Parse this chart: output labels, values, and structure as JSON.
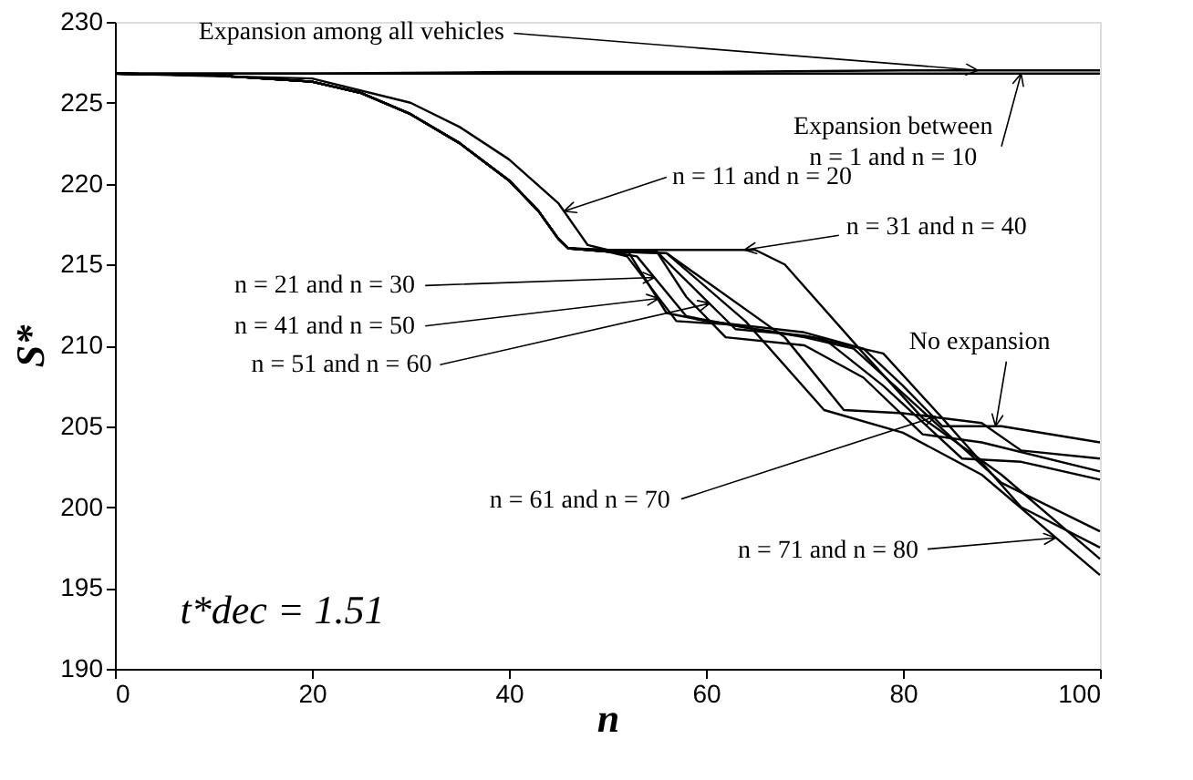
{
  "chart_data": {
    "type": "line",
    "xlabel": "n",
    "ylabel": "S*",
    "xlim": [
      0,
      100
    ],
    "xticks": [
      0,
      20,
      40,
      60,
      80,
      100
    ],
    "ylim": [
      190,
      230
    ],
    "yticks": [
      190,
      195,
      200,
      205,
      210,
      215,
      220,
      225,
      230
    ],
    "grid": false,
    "line_style": "solid",
    "series": [
      {
        "color": "#000000",
        "x": [
          0,
          20,
          40,
          60,
          80,
          100
        ],
        "values": [
          226.8,
          226.8,
          226.9,
          226.9,
          227.0,
          227.0
        ]
      },
      {
        "color": "#000000",
        "x": [
          0,
          20,
          40,
          60,
          80,
          100
        ],
        "values": [
          226.8,
          226.8,
          226.8,
          226.8,
          226.8,
          226.8
        ]
      },
      {
        "color": "#000000",
        "x": [
          0,
          20,
          30,
          35,
          40,
          45,
          48,
          50,
          55,
          58,
          62,
          70,
          76,
          82,
          88,
          100
        ],
        "values": [
          226.8,
          226.5,
          225.0,
          223.5,
          221.5,
          218.8,
          216.2,
          215.9,
          215.8,
          213.0,
          210.5,
          210.0,
          208.0,
          204.5,
          204.0,
          202.2
        ]
      },
      {
        "color": "#000000",
        "x": [
          0,
          10,
          20,
          25,
          30,
          35,
          40,
          43,
          45,
          46,
          50,
          52,
          56,
          60,
          70,
          76,
          80,
          84,
          90,
          100
        ],
        "values": [
          226.8,
          226.7,
          226.3,
          225.6,
          224.3,
          222.5,
          220.2,
          218.3,
          216.6,
          216.0,
          215.9,
          215.9,
          212.0,
          211.5,
          210.8,
          209.8,
          207.5,
          205.0,
          205.0,
          204.0
        ]
      },
      {
        "color": "#000000",
        "x": [
          0,
          10,
          20,
          25,
          30,
          35,
          40,
          43,
          45,
          46,
          50,
          53,
          58,
          65,
          72,
          78,
          86,
          92,
          100
        ],
        "values": [
          226.8,
          226.7,
          226.3,
          225.6,
          224.3,
          222.5,
          220.2,
          218.3,
          216.6,
          216.0,
          215.8,
          215.5,
          211.8,
          211.0,
          210.4,
          207.5,
          203.0,
          202.8,
          201.7
        ]
      },
      {
        "color": "#000000",
        "x": [
          0,
          10,
          20,
          25,
          30,
          35,
          40,
          43,
          45,
          46,
          50,
          52,
          57,
          62,
          70,
          75,
          90,
          100
        ],
        "values": [
          226.8,
          226.7,
          226.3,
          225.6,
          224.3,
          222.5,
          220.2,
          218.3,
          216.6,
          216.0,
          215.8,
          215.5,
          211.5,
          211.3,
          210.5,
          209.8,
          201.5,
          198.5
        ]
      },
      {
        "color": "#000000",
        "x": [
          0,
          10,
          20,
          25,
          30,
          35,
          40,
          43,
          45,
          46,
          50,
          55,
          63,
          70,
          78,
          84,
          92,
          100
        ],
        "values": [
          226.8,
          226.7,
          226.3,
          225.6,
          224.3,
          222.5,
          220.2,
          218.3,
          216.6,
          216.0,
          215.8,
          215.8,
          211.0,
          210.6,
          209.5,
          205.5,
          200.0,
          197.5
        ]
      },
      {
        "color": "#000000",
        "x": [
          0,
          10,
          20,
          25,
          30,
          35,
          40,
          43,
          45,
          46,
          50,
          65,
          68,
          76,
          82,
          90,
          100
        ],
        "values": [
          226.8,
          226.7,
          226.3,
          225.6,
          224.3,
          222.5,
          220.2,
          218.3,
          216.6,
          216.0,
          215.9,
          215.9,
          215.0,
          209.5,
          205.5,
          202.0,
          196.8
        ]
      },
      {
        "color": "#000000",
        "x": [
          0,
          10,
          20,
          25,
          30,
          35,
          40,
          43,
          45,
          46,
          50,
          56,
          68,
          74,
          80,
          88,
          92,
          100
        ],
        "values": [
          226.8,
          226.7,
          226.3,
          225.6,
          224.3,
          222.5,
          220.2,
          218.3,
          216.6,
          216.0,
          215.8,
          215.7,
          210.5,
          206.0,
          205.8,
          205.2,
          203.5,
          203.0
        ]
      },
      {
        "color": "#000000",
        "x": [
          0,
          10,
          20,
          25,
          30,
          35,
          40,
          43,
          45,
          46,
          50,
          56,
          64,
          72,
          80,
          88,
          100
        ],
        "values": [
          226.8,
          226.7,
          226.3,
          225.6,
          224.3,
          222.5,
          220.2,
          218.3,
          216.6,
          216.0,
          215.8,
          215.7,
          211.5,
          206.0,
          204.6,
          202.0,
          195.8
        ]
      }
    ],
    "annotations": [
      {
        "text": "Expansion among all vehicles",
        "x": 87.6,
        "y": 227.0
      },
      {
        "text": "Expansion between\nn = 1 and n = 10",
        "x": 92,
        "y": 226.8
      },
      {
        "text": "n = 11 and n = 20",
        "x": 45.6,
        "y": 218.3
      },
      {
        "text": "n = 31 and n = 40",
        "x": 63.9,
        "y": 215.9
      },
      {
        "text": "n = 21 and n = 30",
        "x": 54.8,
        "y": 214.2
      },
      {
        "text": "n = 41 and n = 50",
        "x": 55.2,
        "y": 212.9
      },
      {
        "text": "n = 51 and n = 60",
        "x": 60.4,
        "y": 212.6
      },
      {
        "text": "No expansion",
        "x": 89.4,
        "y": 205.0
      },
      {
        "text": "n = 61 and n = 70",
        "x": 83.3,
        "y": 205.6
      },
      {
        "text": "n = 71 and n = 80",
        "x": 95.5,
        "y": 198.1
      },
      "t*dec = 1.51"
    ]
  }
}
